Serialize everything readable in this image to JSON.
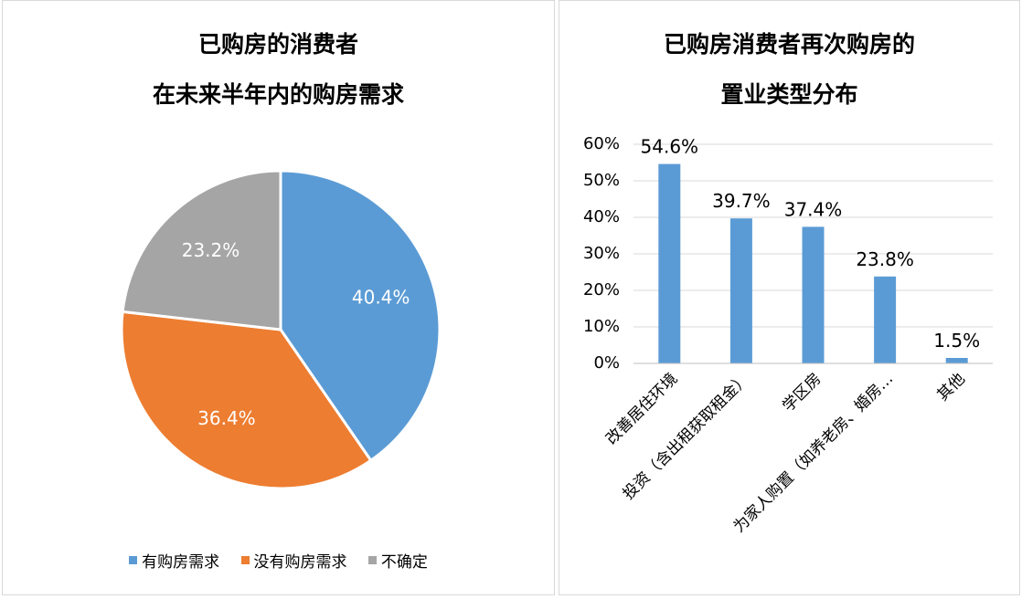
{
  "left": {
    "title_line1": "已购房的消费者",
    "title_line2": "在未来半年内的购房需求",
    "legend": [
      {
        "label": "有购房需求",
        "color": "#5B9BD5"
      },
      {
        "label": "没有购房需求",
        "color": "#ED7D31"
      },
      {
        "label": "不确定",
        "color": "#A5A5A5"
      }
    ]
  },
  "right": {
    "title_line1": "已购房消费者再次购房的",
    "title_line2": "置业类型分布"
  },
  "chart_data": [
    {
      "type": "pie",
      "title": "已购房的消费者在未来半年内的购房需求",
      "categories": [
        "有购房需求",
        "没有购房需求",
        "不确定"
      ],
      "values": [
        40.4,
        36.4,
        23.2
      ],
      "labels": [
        "40.4%",
        "36.4%",
        "23.2%"
      ],
      "colors": [
        "#5B9BD5",
        "#ED7D31",
        "#A5A5A5"
      ],
      "legend": "bottom"
    },
    {
      "type": "bar",
      "title": "已购房消费者再次购房的置业类型分布",
      "categories": [
        "改善居住环境",
        "投资（含出租获取租金）",
        "学区房",
        "为家人购置（如养老房、婚房…",
        "其他"
      ],
      "values": [
        54.6,
        39.7,
        37.4,
        23.8,
        1.5
      ],
      "labels": [
        "54.6%",
        "39.7%",
        "37.4%",
        "23.8%",
        "1.5%"
      ],
      "ylim": [
        0,
        60
      ],
      "yticks": [
        "0%",
        "10%",
        "20%",
        "30%",
        "40%",
        "50%",
        "60%"
      ],
      "color": "#5B9BD5",
      "grid": true
    }
  ]
}
